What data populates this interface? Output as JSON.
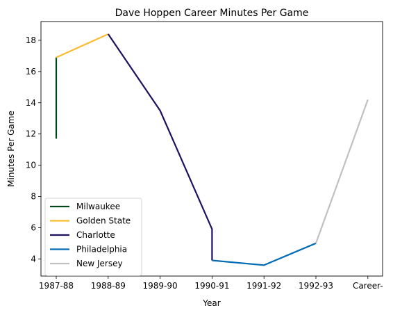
{
  "chart_data": {
    "type": "line",
    "title": "Dave Hoppen Career Minutes Per Game",
    "xlabel": "Year",
    "ylabel": "Minutes Per Game",
    "categories": [
      "1987-88",
      "1988-89",
      "1989-90",
      "1990-91",
      "1991-92",
      "1992-93",
      "Career-"
    ],
    "ylim": [
      2.9,
      19.2
    ],
    "yticks": [
      4,
      6,
      8,
      10,
      12,
      14,
      16,
      18
    ],
    "grid": false,
    "legend_position": "lower-left",
    "series": [
      {
        "name": "Milwaukee",
        "color": "#00471b",
        "points": [
          [
            "1987-88",
            11.7
          ],
          [
            "1987-88",
            16.9
          ]
        ]
      },
      {
        "name": "Golden State",
        "color": "#f9bc31",
        "points": [
          [
            "1987-88",
            16.9
          ],
          [
            "1988-89",
            18.4
          ]
        ]
      },
      {
        "name": "Charlotte",
        "color": "#1d1160",
        "points": [
          [
            "1988-89",
            18.4
          ],
          [
            "1989-90",
            13.5
          ],
          [
            "1990-91",
            5.9
          ],
          [
            "1990-91",
            3.9
          ]
        ]
      },
      {
        "name": "Philadelphia",
        "color": "#006bb6",
        "points": [
          [
            "1990-91",
            3.9
          ],
          [
            "1991-92",
            3.6
          ],
          [
            "1992-93",
            5.0
          ]
        ]
      },
      {
        "name": "New Jersey",
        "color": "#c0c0c0",
        "points": [
          [
            "1992-93",
            5.0
          ],
          [
            "Career-",
            14.2
          ]
        ]
      }
    ]
  }
}
